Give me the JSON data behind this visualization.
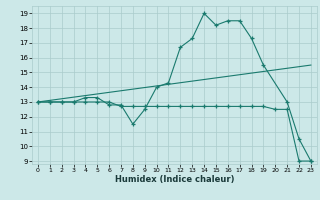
{
  "xlabel": "Humidex (Indice chaleur)",
  "background_color": "#cce8e8",
  "grid_color": "#aacccc",
  "line_color": "#1a7a6e",
  "ylim": [
    8.8,
    19.5
  ],
  "xlim": [
    -0.5,
    23.5
  ],
  "yticks": [
    9,
    10,
    11,
    12,
    13,
    14,
    15,
    16,
    17,
    18,
    19
  ],
  "xticks": [
    0,
    1,
    2,
    3,
    4,
    5,
    6,
    7,
    8,
    9,
    10,
    11,
    12,
    13,
    14,
    15,
    16,
    17,
    18,
    19,
    20,
    21,
    22,
    23
  ],
  "series_upper": {
    "x": [
      0,
      1,
      2,
      3,
      4,
      5,
      6,
      7,
      8,
      9,
      10,
      11,
      12,
      13,
      14,
      15,
      16,
      17,
      18,
      19,
      21,
      22,
      23
    ],
    "y": [
      13,
      13,
      13,
      13,
      13.3,
      13.3,
      12.8,
      12.8,
      11.5,
      12.5,
      14.0,
      14.3,
      16.7,
      17.3,
      19.0,
      18.2,
      18.5,
      18.5,
      17.3,
      15.5,
      13.0,
      10.5,
      9.0
    ]
  },
  "series_lower": {
    "x": [
      0,
      1,
      2,
      3,
      4,
      5,
      6,
      7,
      8,
      9,
      10,
      11,
      12,
      13,
      14,
      15,
      16,
      17,
      18,
      19,
      20,
      21,
      22,
      23
    ],
    "y": [
      13,
      13,
      13,
      13,
      13,
      13,
      13,
      12.7,
      12.7,
      12.7,
      12.7,
      12.7,
      12.7,
      12.7,
      12.7,
      12.7,
      12.7,
      12.7,
      12.7,
      12.7,
      12.5,
      12.5,
      9.0,
      9.0
    ]
  },
  "series_trend": {
    "x": [
      0,
      23
    ],
    "y": [
      13.0,
      15.5
    ]
  }
}
